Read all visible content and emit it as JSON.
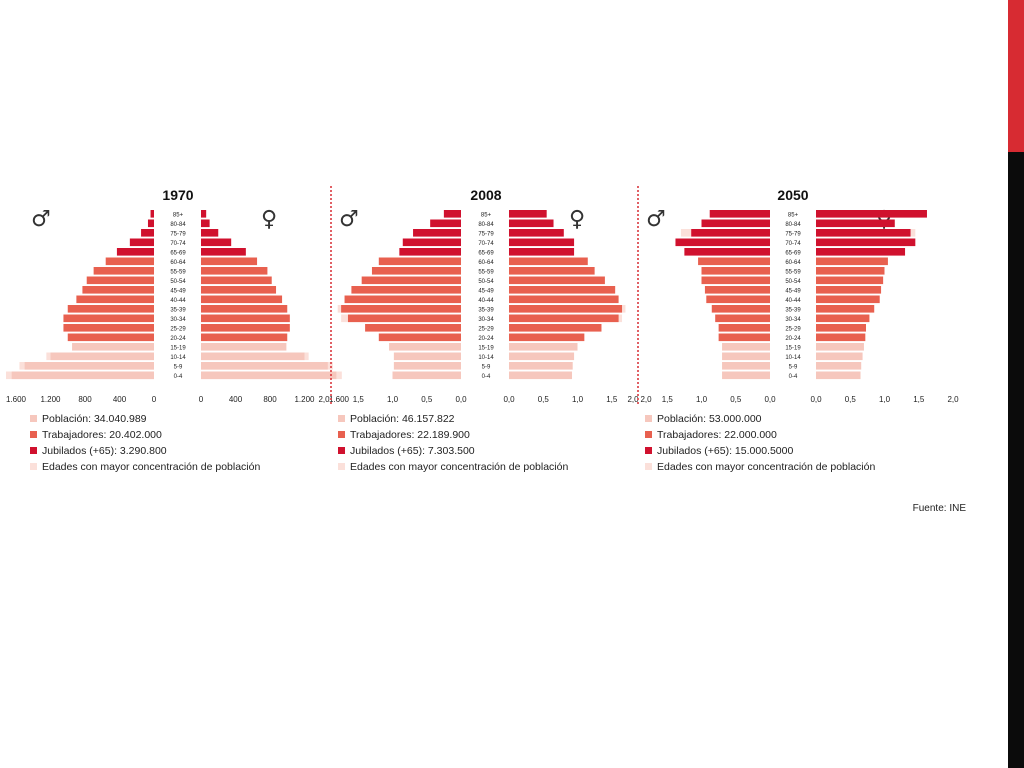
{
  "source": "Fuente: INE",
  "legend_colors": [
    "#f6c7bd",
    "#e8604f",
    "#d0112e",
    "#fbe0da"
  ],
  "sex_symbols": {
    "male": "♂",
    "female": "♀"
  },
  "age_groups": [
    "85+",
    "80-84",
    "75-79",
    "70-74",
    "65-69",
    "60-64",
    "55-59",
    "50-54",
    "45-49",
    "40-44",
    "35-39",
    "30-34",
    "25-29",
    "20-24",
    "15-19",
    "10-14",
    "5-9",
    "0-4"
  ],
  "chart_data": [
    {
      "type": "bar",
      "title": "1970",
      "x_ticks_left": [
        "1.600",
        "1.200",
        "800",
        "400",
        "0"
      ],
      "x_ticks_right": [
        "0",
        "400",
        "800",
        "1.200",
        "1.600"
      ],
      "xlim": [
        0,
        1600
      ],
      "series": [
        {
          "name": "male",
          "values": [
            40,
            70,
            150,
            280,
            430,
            560,
            700,
            780,
            830,
            900,
            1000,
            1050,
            1050,
            1000,
            950,
            1200,
            1500,
            1650
          ]
        },
        {
          "name": "female",
          "values": [
            60,
            100,
            200,
            350,
            520,
            650,
            770,
            820,
            870,
            940,
            1000,
            1030,
            1030,
            1000,
            990,
            1200,
            1470,
            1570
          ]
        }
      ],
      "group": [
        "jub",
        "jub",
        "jub",
        "jub",
        "jub",
        "trab",
        "trab",
        "trab",
        "trab",
        "trab",
        "trab",
        "trab",
        "trab",
        "trab",
        "pob",
        "pob",
        "pob",
        "pob"
      ],
      "highlight": [
        false,
        false,
        false,
        false,
        false,
        false,
        false,
        false,
        false,
        false,
        false,
        false,
        false,
        false,
        false,
        true,
        true,
        true
      ],
      "legend": [
        "Población: 34.040.989",
        "Trabajadores: 20.402.000",
        "Jubilados (+65): 3.290.800",
        "Edades con mayor concentración de población"
      ]
    },
    {
      "type": "bar",
      "title": "2008",
      "x_ticks_left": [
        "2,0",
        "1,5",
        "1,0",
        "0,5",
        "0,0"
      ],
      "x_ticks_right": [
        "0,0",
        "0,5",
        "1,0",
        "1,5",
        "2,0"
      ],
      "xlim": [
        0,
        2.0
      ],
      "series": [
        {
          "name": "male",
          "values": [
            0.25,
            0.45,
            0.7,
            0.85,
            0.9,
            1.2,
            1.3,
            1.45,
            1.6,
            1.7,
            1.75,
            1.65,
            1.4,
            1.2,
            1.05,
            0.98,
            0.98,
            1.0
          ]
        },
        {
          "name": "female",
          "values": [
            0.55,
            0.65,
            0.8,
            0.95,
            0.95,
            1.15,
            1.25,
            1.4,
            1.55,
            1.6,
            1.65,
            1.6,
            1.35,
            1.1,
            1.0,
            0.95,
            0.93,
            0.92
          ]
        },
        {
          "name": "male-highlight",
          "values": [
            0,
            0,
            0,
            0,
            0,
            0,
            0,
            0,
            0,
            0,
            1.8,
            1.75,
            0,
            0,
            0,
            0,
            0,
            0
          ]
        },
        {
          "name": "female-highlight",
          "values": [
            0,
            0,
            0,
            0,
            0,
            0,
            0,
            0,
            0,
            0,
            1.7,
            1.65,
            0,
            0,
            0,
            0,
            0,
            0
          ]
        }
      ],
      "group": [
        "jub",
        "jub",
        "jub",
        "jub",
        "jub",
        "trab",
        "trab",
        "trab",
        "trab",
        "trab",
        "trab",
        "trab",
        "trab",
        "trab",
        "pob",
        "pob",
        "pob",
        "pob"
      ],
      "highlight": [
        false,
        false,
        false,
        false,
        false,
        false,
        false,
        false,
        false,
        false,
        true,
        true,
        false,
        false,
        false,
        false,
        false,
        false
      ],
      "legend": [
        "Población: 46.157.822",
        "Trabajadores: 22.189.900",
        "Jubilados (+65): 7.303.500",
        "Edades con mayor concentración de población"
      ]
    },
    {
      "type": "bar",
      "title": "2050",
      "x_ticks_left": [
        "2,0",
        "1,5",
        "1,0",
        "0,5",
        "0,0"
      ],
      "x_ticks_right": [
        "0,0",
        "0,5",
        "1,0",
        "1,5",
        "2,0"
      ],
      "xlim": [
        0,
        2.0
      ],
      "series": [
        {
          "name": "male",
          "values": [
            0.88,
            1.0,
            1.15,
            1.38,
            1.25,
            1.05,
            1.0,
            1.0,
            0.95,
            0.93,
            0.85,
            0.8,
            0.75,
            0.75,
            0.7,
            0.7,
            0.7,
            0.7
          ]
        },
        {
          "name": "female",
          "values": [
            1.62,
            1.15,
            1.38,
            1.45,
            1.3,
            1.05,
            1.0,
            0.98,
            0.95,
            0.93,
            0.85,
            0.78,
            0.73,
            0.72,
            0.7,
            0.68,
            0.66,
            0.65
          ]
        },
        {
          "name": "male-highlight",
          "values": [
            0,
            0,
            1.3,
            0,
            0,
            0,
            0,
            0,
            0,
            0,
            0,
            0,
            0,
            0,
            0,
            0,
            0,
            0
          ]
        },
        {
          "name": "female-highlight",
          "values": [
            0,
            0,
            1.45,
            0,
            0,
            0,
            0,
            0,
            0,
            0,
            0,
            0,
            0,
            0,
            0,
            0,
            0,
            0
          ]
        }
      ],
      "group": [
        "jub",
        "jub",
        "jub",
        "jub",
        "jub",
        "trab",
        "trab",
        "trab",
        "trab",
        "trab",
        "trab",
        "trab",
        "trab",
        "trab",
        "pob",
        "pob",
        "pob",
        "pob"
      ],
      "highlight": [
        false,
        false,
        true,
        false,
        false,
        false,
        false,
        false,
        false,
        false,
        false,
        false,
        false,
        false,
        false,
        false,
        false,
        false
      ],
      "legend": [
        "Población: 53.000.000",
        "Trabajadores: 22.000.000",
        "Jubilados (+65): 15.000.5000",
        "Edades con mayor concentración de población"
      ]
    }
  ]
}
